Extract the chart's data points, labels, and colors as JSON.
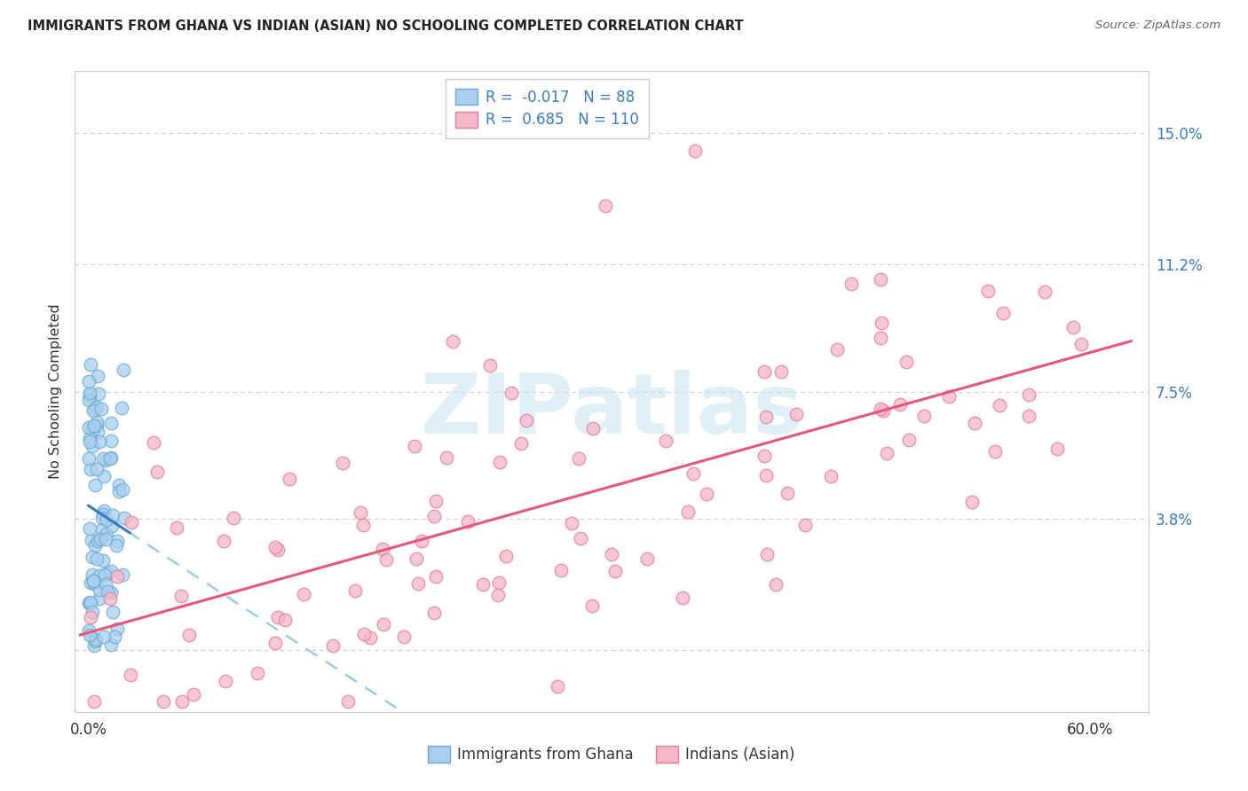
{
  "title": "IMMIGRANTS FROM GHANA VS INDIAN (ASIAN) NO SCHOOLING COMPLETED CORRELATION CHART",
  "source": "Source: ZipAtlas.com",
  "ylabel": "No Schooling Completed",
  "y_tick_positions": [
    0.0,
    0.038,
    0.075,
    0.112,
    0.15
  ],
  "y_tick_labels": [
    "",
    "3.8%",
    "7.5%",
    "11.2%",
    "15.0%"
  ],
  "x_tick_positions": [
    0.0,
    0.1,
    0.2,
    0.3,
    0.4,
    0.5,
    0.6
  ],
  "x_tick_labels": [
    "0.0%",
    "",
    "",
    "",
    "",
    "",
    "60.0%"
  ],
  "xlim": [
    -0.008,
    0.635
  ],
  "ylim": [
    -0.018,
    0.168
  ],
  "ghana_R": -0.017,
  "ghana_N": 88,
  "indian_R": 0.685,
  "indian_N": 110,
  "ghana_color": "#aacfee",
  "ghana_edge": "#6aaad4",
  "indian_color": "#f5b8c8",
  "indian_edge": "#e87a9a",
  "ghana_line_color": "#3a7abf",
  "indian_line_color": "#e8567a",
  "ghana_dashed_color": "#90c8e8",
  "watermark_color": "#c8e4f5",
  "legend_ghana_label": "Immigrants from Ghana",
  "legend_indian_label": "Indians (Asian)",
  "legend_R_color": "#3a7abf",
  "legend_N_color": "#3a7abf",
  "right_tick_color": "#3a7abf",
  "grid_color": "#cccccc",
  "background_color": "#ffffff"
}
